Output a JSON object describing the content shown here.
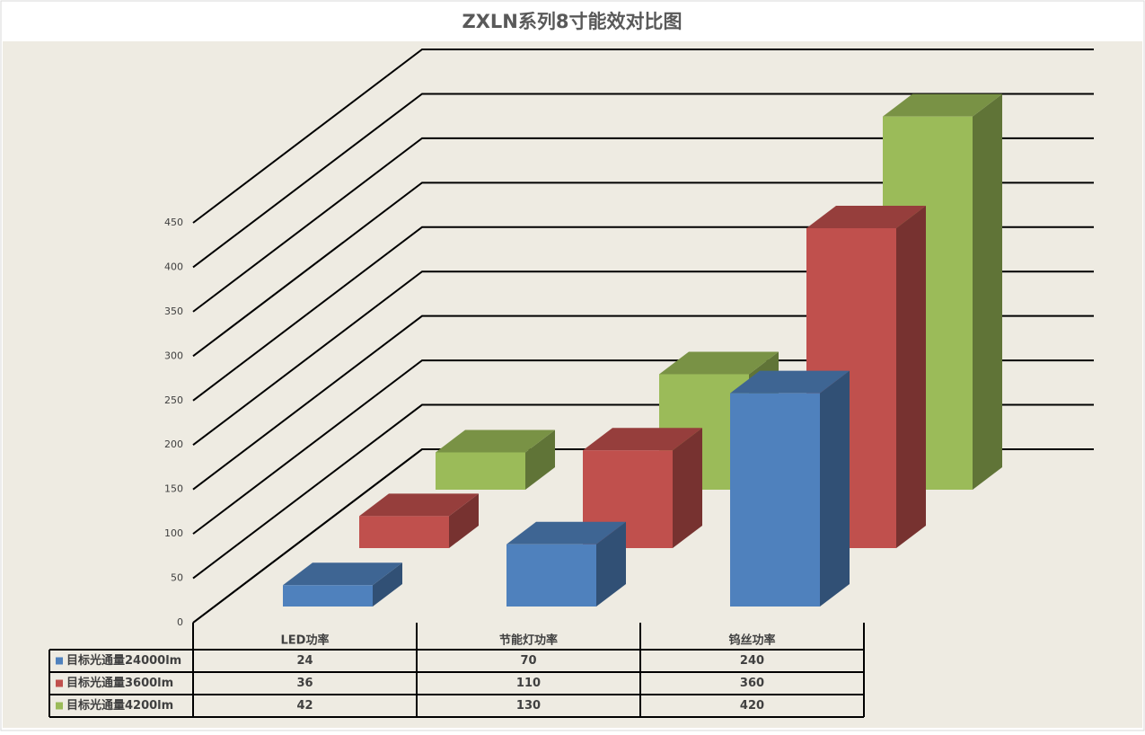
{
  "chart_data": {
    "type": "bar3d",
    "title": "ZXLN系列8寸能效对比图",
    "categories": [
      "LED功率",
      "节能灯功率",
      "钨丝功率"
    ],
    "series": [
      {
        "name": "目标光通量24000lm",
        "color": "#4f81bd",
        "values": [
          24,
          70,
          240
        ]
      },
      {
        "name": "目标光通量3600lm",
        "color": "#c0504d",
        "values": [
          36,
          110,
          360
        ]
      },
      {
        "name": "目标光通量4200lm",
        "color": "#9bbb59",
        "values": [
          42,
          130,
          420
        ]
      }
    ],
    "ylim": [
      0,
      450
    ],
    "yticks": [
      0,
      50,
      100,
      150,
      200,
      250,
      300,
      350,
      400,
      450
    ],
    "grid": true,
    "data_table": true
  }
}
